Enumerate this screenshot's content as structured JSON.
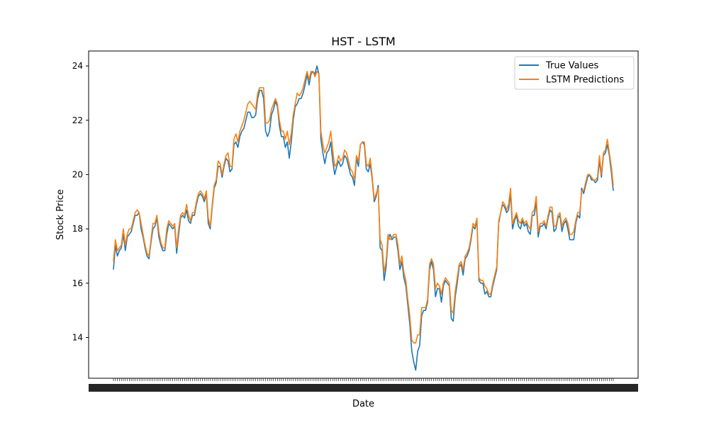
{
  "chart_data": {
    "type": "line",
    "title": "HST - LSTM",
    "xlabel": "Date",
    "ylabel": "Stock Price",
    "ylim": [
      12.5,
      24.55
    ],
    "yticks": [
      14,
      16,
      18,
      20,
      22,
      24
    ],
    "x_tick_labels": "dense overlapping date labels (illegible)",
    "grid": false,
    "legend_position": "top-right",
    "series": [
      {
        "name": "True Values",
        "color": "#1f77b4",
        "values": [
          16.5,
          17.4,
          17.0,
          17.2,
          17.3,
          17.8,
          17.2,
          17.7,
          17.8,
          17.9,
          18.2,
          18.5,
          18.5,
          18.6,
          18.0,
          17.7,
          17.3,
          17.0,
          16.9,
          17.5,
          18.0,
          18.1,
          18.4,
          17.7,
          17.4,
          17.2,
          17.2,
          17.8,
          18.2,
          18.1,
          18.0,
          18.1,
          17.1,
          17.8,
          18.4,
          18.5,
          18.4,
          18.7,
          18.3,
          18.2,
          18.5,
          18.5,
          18.9,
          19.2,
          19.3,
          19.2,
          19.0,
          19.3,
          18.2,
          18.0,
          18.8,
          19.5,
          19.7,
          20.3,
          20.3,
          19.9,
          20.3,
          20.6,
          20.5,
          20.1,
          20.2,
          21.1,
          21.2,
          21.0,
          21.4,
          21.6,
          21.7,
          22.0,
          22.3,
          22.3,
          22.1,
          22.1,
          22.2,
          22.8,
          23.1,
          23.1,
          22.8,
          21.6,
          21.4,
          21.6,
          22.2,
          22.4,
          22.7,
          22.5,
          21.8,
          21.4,
          21.4,
          21.0,
          21.2,
          20.6,
          21.2,
          22.0,
          22.5,
          22.6,
          22.8,
          22.8,
          23.0,
          23.3,
          23.7,
          23.3,
          23.7,
          23.8,
          23.7,
          24.0,
          23.7,
          21.3,
          20.8,
          20.4,
          20.8,
          20.9,
          21.2,
          20.5,
          20.0,
          20.3,
          20.5,
          20.3,
          20.4,
          20.7,
          20.6,
          20.3,
          20.0,
          19.9,
          19.6,
          20.6,
          20.3,
          21.1,
          21.2,
          21.1,
          20.2,
          20.1,
          20.4,
          19.8,
          19.0,
          19.2,
          19.6,
          17.3,
          17.2,
          16.1,
          16.6,
          17.6,
          17.8,
          17.6,
          17.7,
          17.7,
          17.2,
          16.5,
          16.8,
          16.2,
          15.9,
          15.2,
          14.5,
          13.5,
          13.1,
          12.8,
          13.5,
          13.7,
          14.8,
          15.0,
          15.0,
          15.3,
          16.5,
          16.8,
          16.5,
          15.5,
          15.8,
          15.8,
          15.3,
          15.9,
          16.1,
          16.0,
          15.9,
          14.7,
          14.6,
          15.5,
          16.0,
          16.6,
          16.7,
          16.3,
          16.9,
          17.0,
          17.2,
          17.6,
          18.1,
          18.0,
          18.3,
          16.1,
          16.0,
          16.0,
          15.6,
          15.7,
          15.5,
          15.5,
          15.9,
          16.2,
          16.5,
          18.2,
          18.6,
          18.9,
          18.8,
          18.6,
          18.7,
          19.3,
          18.0,
          18.3,
          18.5,
          18.1,
          18.0,
          18.3,
          18.1,
          18.2,
          17.9,
          17.8,
          18.5,
          18.5,
          19.0,
          17.7,
          18.1,
          18.1,
          18.2,
          18.0,
          18.4,
          18.7,
          18.6,
          17.9,
          18.0,
          18.4,
          18.5,
          17.9,
          18.2,
          18.3,
          18.0,
          17.6,
          17.6,
          17.6,
          18.2,
          18.5,
          18.4,
          19.5,
          19.3,
          19.6,
          19.9,
          20.0,
          19.8,
          19.8,
          19.7,
          19.8,
          20.5,
          19.9,
          20.7,
          20.8,
          21.1,
          20.7,
          20.1,
          19.4
        ]
      },
      {
        "name": "LSTM Predictions",
        "color": "#ff7f0e",
        "values": [
          16.8,
          17.6,
          17.2,
          17.3,
          17.4,
          18.0,
          17.4,
          17.8,
          18.0,
          18.0,
          18.3,
          18.6,
          18.7,
          18.6,
          18.2,
          17.8,
          17.4,
          17.1,
          17.0,
          17.6,
          18.2,
          18.2,
          18.5,
          17.9,
          17.5,
          17.3,
          17.3,
          18.0,
          18.3,
          18.2,
          18.1,
          18.2,
          17.3,
          18.0,
          18.5,
          18.6,
          18.5,
          18.9,
          18.5,
          18.3,
          18.6,
          18.6,
          19.0,
          19.3,
          19.4,
          19.3,
          19.1,
          19.4,
          18.4,
          18.1,
          18.9,
          19.6,
          19.8,
          20.5,
          20.4,
          20.0,
          20.4,
          20.7,
          20.8,
          20.3,
          20.3,
          21.3,
          21.5,
          21.2,
          21.6,
          21.8,
          22.0,
          22.3,
          22.6,
          22.7,
          22.6,
          22.5,
          22.4,
          23.0,
          23.2,
          23.2,
          23.2,
          21.9,
          21.9,
          22.0,
          22.4,
          22.6,
          22.8,
          22.6,
          22.0,
          21.6,
          21.6,
          21.3,
          21.6,
          21.1,
          21.5,
          22.2,
          22.6,
          23.0,
          22.9,
          23.0,
          23.2,
          23.5,
          23.8,
          23.5,
          23.8,
          23.8,
          23.6,
          23.8,
          23.7,
          21.6,
          21.1,
          20.8,
          21.0,
          21.2,
          21.6,
          20.9,
          20.3,
          20.4,
          20.7,
          20.5,
          20.6,
          20.9,
          20.8,
          20.5,
          20.2,
          20.1,
          19.8,
          20.7,
          20.5,
          21.1,
          21.2,
          21.2,
          20.4,
          20.3,
          20.6,
          19.9,
          19.1,
          19.3,
          19.5,
          17.6,
          17.4,
          16.4,
          16.8,
          17.8,
          17.6,
          17.7,
          17.8,
          17.8,
          17.4,
          16.7,
          17.0,
          16.4,
          16.1,
          15.4,
          14.8,
          13.9,
          13.8,
          13.8,
          14.1,
          14.1,
          15.1,
          15.1,
          15.1,
          15.4,
          16.7,
          16.9,
          16.7,
          15.8,
          16.0,
          15.9,
          15.6,
          16.0,
          16.2,
          16.1,
          16.0,
          15.0,
          14.9,
          15.7,
          16.2,
          16.7,
          16.8,
          16.5,
          17.0,
          17.1,
          17.3,
          17.7,
          18.2,
          18.1,
          18.4,
          16.2,
          16.1,
          16.1,
          15.9,
          15.8,
          15.6,
          15.6,
          16.0,
          16.3,
          16.6,
          18.3,
          18.6,
          19.0,
          18.9,
          18.7,
          18.9,
          19.5,
          18.2,
          18.4,
          18.6,
          18.3,
          18.2,
          18.4,
          18.2,
          18.3,
          18.1,
          18.0,
          18.6,
          18.7,
          19.2,
          17.9,
          18.2,
          18.2,
          18.3,
          18.1,
          18.5,
          18.8,
          18.8,
          18.1,
          18.1,
          18.5,
          18.6,
          18.1,
          18.3,
          18.4,
          18.2,
          17.8,
          17.8,
          17.9,
          18.3,
          18.6,
          18.6,
          19.4,
          19.4,
          19.7,
          20.0,
          20.0,
          19.9,
          19.8,
          19.8,
          19.9,
          20.7,
          20.0,
          20.8,
          20.9,
          21.3,
          20.8,
          20.3,
          19.6
        ]
      }
    ]
  }
}
